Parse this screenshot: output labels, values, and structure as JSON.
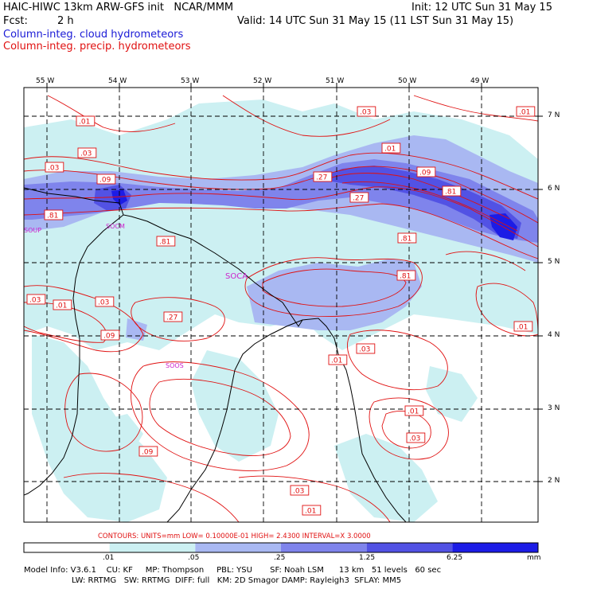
{
  "header": {
    "title": "HAIC-HIWC 13km ARW-GFS init   NCAR/MMM",
    "init": "Init: 12 UTC Sun 31 May 15",
    "fcst_label": "Fcst:",
    "fcst_value": "2 h",
    "valid": "Valid: 14 UTC Sun 31 May 15 (11 LST Sun 31 May 15)",
    "field1": "Column-integ. cloud hydrometeors",
    "field2": "Column-integ. precip. hydrometeors",
    "field1_color": "#1a1ad6",
    "field2_color": "#e01010"
  },
  "axes": {
    "lon_labels": [
      "55 W",
      "54 W",
      "53 W",
      "52 W",
      "51 W",
      "50 W",
      "49 W"
    ],
    "lat_labels": [
      "7 N",
      "6 N",
      "5 N",
      "4 N",
      "3 N",
      "2 N"
    ]
  },
  "contour_labels": [
    ".01",
    ".03",
    ".03",
    ".09",
    ".81",
    ".81",
    ".27",
    ".27",
    ".01",
    ".09",
    ".81",
    ".81",
    ".81",
    ".01",
    ".03",
    ".27",
    ".09",
    ".03",
    ".01",
    ".03",
    ".09",
    ".01",
    ".03",
    ".01",
    ".01",
    ".03",
    ".03",
    ".01"
  ],
  "place_labels": [
    "SOUP",
    "SOCM",
    "SOCA",
    "SOOS"
  ],
  "contours_info": {
    "text": "CONTOURS:  UNITS=mm   LOW= 0.10000E-01  HIGH=  2.4300      INTERVAL=X  3.0000"
  },
  "colorbar": {
    "levels": [
      ".01",
      ".05",
      ".25",
      "1.25",
      "6.25"
    ],
    "unit": "mm",
    "colors": [
      "#ffffff",
      "#ccf0f2",
      "#a9b8f2",
      "#7f84ec",
      "#5252e4",
      "#1c1ce6"
    ]
  },
  "footer": {
    "line1": "Model Info: V3.6.1    CU: KF     MP: Thompson     PBL: YSU       SF: Noah LSM      13 km   51 levels   60 sec",
    "line2": "LW: RRTMG   SW: RRTMG  DIFF: full   KM: 2D Smagor DAMP: Rayleigh3  SFLAY: MM5"
  }
}
